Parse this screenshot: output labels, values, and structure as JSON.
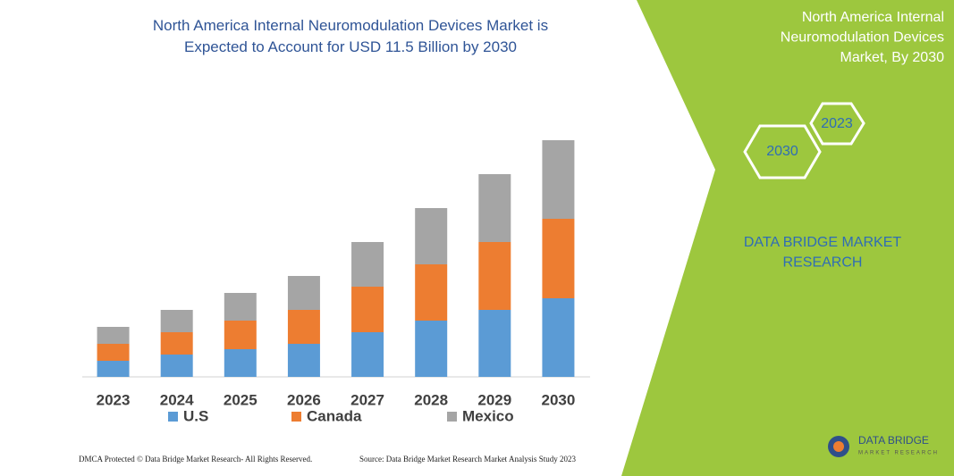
{
  "chart_data": {
    "type": "stacked_bar",
    "title": "North America Internal Neuromodulation Devices Market is Expected to Account for USD 11.5 Billion by 2030",
    "categories": [
      "2023",
      "2024",
      "2025",
      "2026",
      "2027",
      "2028",
      "2029",
      "2030"
    ],
    "series": [
      {
        "name": "U.S",
        "color": "#5b9bd5",
        "values": [
          18,
          25,
          31,
          37,
          50,
          63,
          75,
          88
        ]
      },
      {
        "name": "Canada",
        "color": "#ed7d31",
        "values": [
          19,
          25,
          32,
          38,
          51,
          63,
          76,
          89
        ]
      },
      {
        "name": "Mexico",
        "color": "#a5a5a5",
        "values": [
          19,
          25,
          31,
          38,
          50,
          63,
          76,
          88
        ]
      }
    ]
  },
  "panel": {
    "title": "North America Internal Neuromodulation Devices Market, By 2030",
    "hexagons": [
      "2023",
      "2030"
    ],
    "brand": "DATA BRIDGE MARKET RESEARCH"
  },
  "logo": {
    "name": "DATA BRIDGE",
    "tagline": "MARKET RESEARCH"
  },
  "footer": {
    "left": "DMCA Protected © Data Bridge Market Research- All Rights Reserved.",
    "right": "Source: Data Bridge Market Research Market Analysis Study 2023"
  }
}
